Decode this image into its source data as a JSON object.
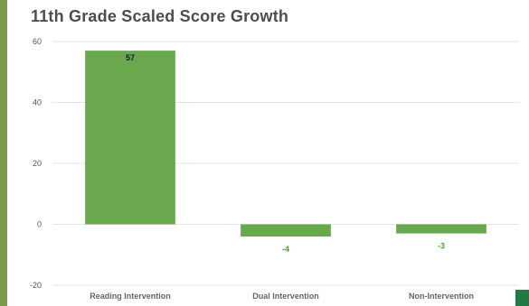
{
  "chart_data": {
    "type": "bar",
    "title": "11th Grade Scaled Score Growth",
    "categories": [
      "Reading Intervention",
      "Dual Intervention",
      "Non-Intervention"
    ],
    "values": [
      57,
      -4,
      -3
    ],
    "data_labels": [
      "57",
      "-4",
      "-3"
    ],
    "ylim": [
      -20,
      60
    ],
    "yticks": [
      "60",
      "40",
      "20",
      "0",
      "-20"
    ],
    "ytick_values": [
      60,
      40,
      20,
      0,
      -20
    ],
    "grid": true,
    "bar_color": "#6aa84f",
    "label_inside_color": "#1a1a1a",
    "label_outside_color": "#5a9a3c"
  },
  "colors": {
    "accent_left_bar": "#7a9a4e",
    "corner_square": "#1f7a46"
  }
}
